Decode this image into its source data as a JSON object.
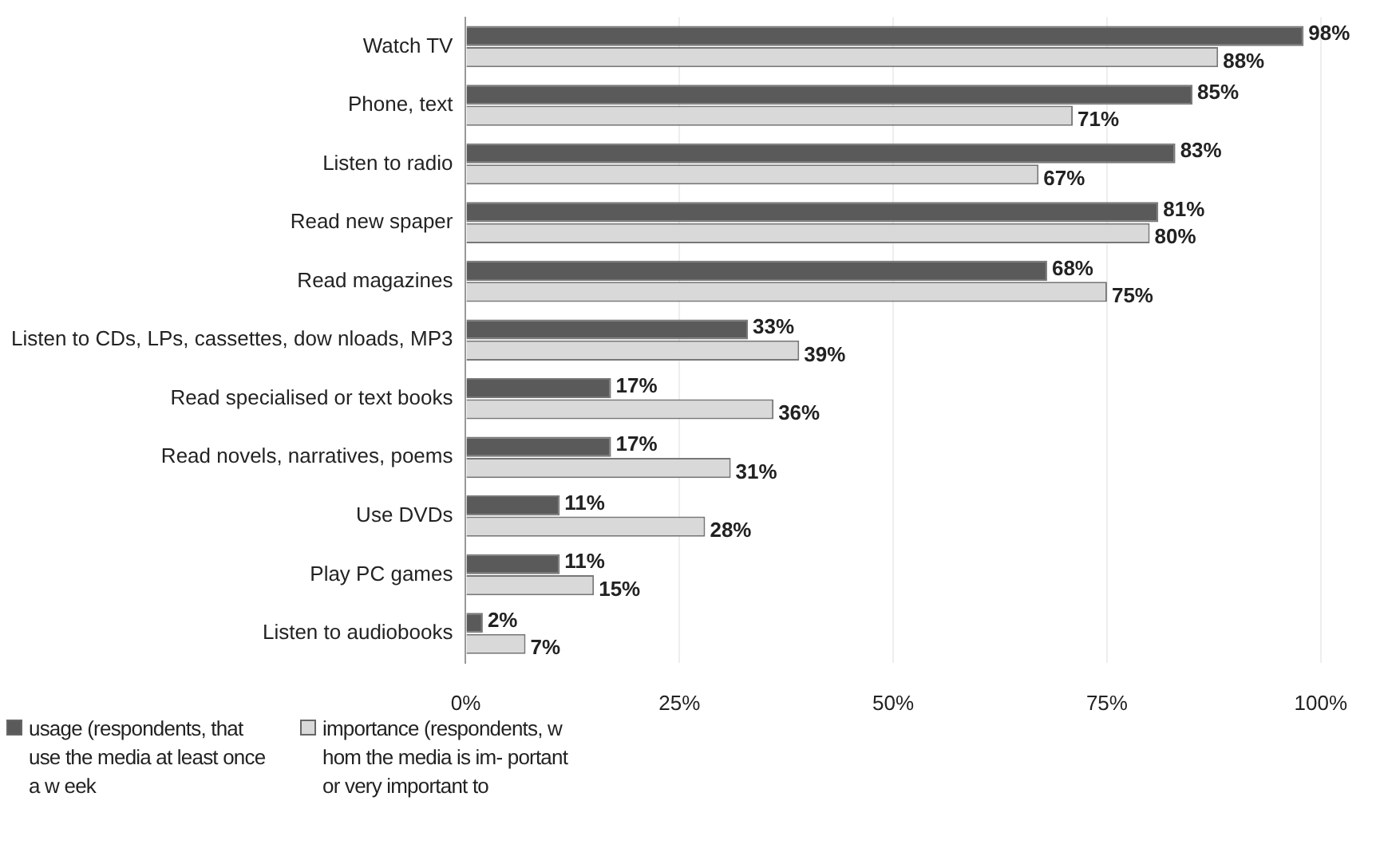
{
  "chart_data": {
    "type": "bar",
    "orientation": "horizontal",
    "categories": [
      "Watch TV",
      "Phone, text",
      "Listen to radio",
      "Read new spaper",
      "Read magazines",
      "Listen to CDs, LPs, cassettes, dow nloads, MP3",
      "Read specialised or text books",
      "Read novels, narratives, poems",
      "Use DVDs",
      "Play PC games",
      "Listen to audiobooks"
    ],
    "series": [
      {
        "name": "usage (respondents, that use the media at least once a w eek",
        "color": "#5a5a5a",
        "values": [
          98,
          85,
          83,
          81,
          68,
          33,
          17,
          17,
          11,
          11,
          2
        ],
        "value_labels": [
          "98%",
          "85%",
          "83%",
          "81%",
          "68%",
          "33%",
          "17%",
          "17%",
          "11%",
          "11%",
          "2%"
        ]
      },
      {
        "name": "importance (respondents, w hom the media is im- portant or very important to",
        "color": "#d9d9d9",
        "values": [
          88,
          71,
          67,
          80,
          75,
          39,
          36,
          31,
          28,
          15,
          7
        ],
        "value_labels": [
          "88%",
          "71%",
          "67%",
          "80%",
          "75%",
          "39%",
          "36%",
          "31%",
          "28%",
          "15%",
          "7%"
        ]
      }
    ],
    "xlim": [
      0,
      100
    ],
    "xticks": [
      {
        "value": 0,
        "label": "0%"
      },
      {
        "value": 25,
        "label": "25%"
      },
      {
        "value": 50,
        "label": "50%"
      },
      {
        "value": 75,
        "label": "75%"
      },
      {
        "value": 100,
        "label": "100%"
      }
    ],
    "grid": "x",
    "legend": "bottom left"
  }
}
